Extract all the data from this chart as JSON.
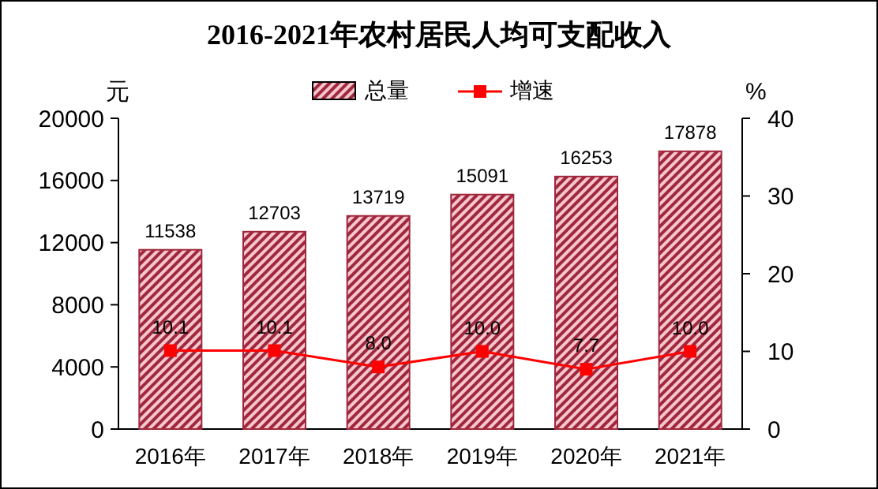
{
  "chart_data": {
    "type": "bar",
    "title": "2016-2021年农村居民人均可支配收入",
    "ylabel": "元",
    "y2label": "%",
    "categories": [
      "2016年",
      "2017年",
      "2018年",
      "2019年",
      "2020年",
      "2021年"
    ],
    "series": [
      {
        "name": "总量",
        "color": "#a0283c",
        "values": [
          11538,
          12703,
          13719,
          15091,
          16253,
          17878
        ],
        "value_labels": [
          "11538",
          "12703",
          "13719",
          "15091",
          "16253",
          "17878"
        ]
      },
      {
        "name": "增速",
        "type": "line",
        "axis": "y2",
        "color": "#ff0000",
        "marker": "square",
        "values": [
          10.1,
          10.1,
          8.0,
          10.0,
          7.7,
          10.0
        ],
        "value_labels": [
          "10.1",
          "10.1",
          "8.0",
          "10.0",
          "7.7",
          "10.0"
        ]
      }
    ],
    "ylim": [
      0,
      20000
    ],
    "yticks": [
      0,
      4000,
      8000,
      12000,
      16000,
      20000
    ],
    "y2lim": [
      0,
      40
    ],
    "y2ticks": [
      0,
      10,
      20,
      30,
      40
    ],
    "legend": "top",
    "grid": false
  }
}
